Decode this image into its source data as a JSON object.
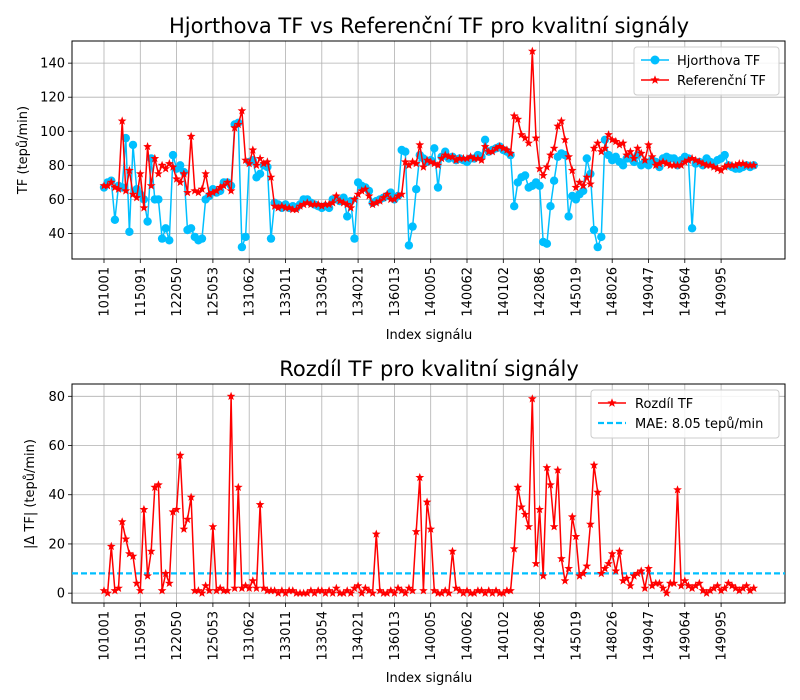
{
  "chart_data": [
    {
      "type": "line",
      "title": "Hjorthova TF vs Referenční TF pro kvalitní signály",
      "xlabel": "Index signálu",
      "ylabel": "TF (tepů/min)",
      "x_tick_labels": [
        "101001",
        "115091",
        "122050",
        "125053",
        "131062",
        "133011",
        "133054",
        "134021",
        "136013",
        "140005",
        "140062",
        "140102",
        "142086",
        "145019",
        "148026",
        "149047",
        "149064",
        "149095"
      ],
      "ylim": [
        25,
        153
      ],
      "yticks": [
        40,
        60,
        80,
        100,
        120,
        140
      ],
      "grid": true,
      "legend_position": "top-right",
      "n_points": 180,
      "series": [
        {
          "name": "Hjorthova TF",
          "color": "#00bfff",
          "marker": "circle",
          "values": [
            67,
            70,
            71,
            48,
            68,
            67,
            96,
            41,
            92,
            66,
            63,
            60,
            47,
            84,
            60,
            60,
            37,
            43,
            36,
            86,
            78,
            80,
            76,
            42,
            43,
            38,
            36,
            37,
            60,
            62,
            66,
            64,
            65,
            70,
            70,
            68,
            104,
            105,
            32,
            38,
            82,
            83,
            73,
            75,
            80,
            79,
            37,
            58,
            57,
            55,
            57,
            55,
            56,
            55,
            57,
            60,
            60,
            58,
            57,
            56,
            55,
            56,
            55,
            60,
            60,
            59,
            61,
            50,
            59,
            37,
            70,
            68,
            67,
            65,
            58,
            59,
            60,
            61,
            62,
            64,
            60,
            62,
            89,
            88,
            33,
            44,
            66,
            86,
            84,
            82,
            83,
            90,
            67,
            85,
            88,
            84,
            85,
            83,
            84,
            83,
            82,
            84,
            84,
            86,
            85,
            95,
            88,
            89,
            90,
            91,
            89,
            88,
            86,
            56,
            70,
            73,
            74,
            67,
            68,
            70,
            68,
            35,
            34,
            56,
            71,
            85,
            87,
            86,
            50,
            62,
            60,
            63,
            65,
            84,
            75,
            42,
            32,
            38,
            95,
            86,
            83,
            85,
            82,
            80,
            84,
            84,
            82,
            86,
            80,
            82,
            80,
            83,
            82,
            79,
            84,
            85,
            84,
            84,
            80,
            83,
            85,
            84,
            43,
            81,
            82,
            80,
            84,
            82,
            80,
            83,
            84,
            86,
            80,
            79,
            78,
            78,
            79,
            80,
            79,
            80
          ]
        },
        {
          "name": "Referenční TF",
          "color": "#ff0000",
          "marker": "star",
          "values": [
            68,
            68,
            70,
            67,
            66,
            106,
            65,
            77,
            63,
            61,
            75,
            55,
            91,
            68,
            84,
            75,
            80,
            78,
            81,
            79,
            72,
            70,
            75,
            64,
            97,
            65,
            64,
            66,
            75,
            63,
            64,
            65,
            67,
            68,
            70,
            65,
            102,
            104,
            112,
            83,
            81,
            89,
            80,
            84,
            81,
            82,
            73,
            56,
            55,
            56,
            55,
            55,
            54,
            54,
            56,
            57,
            58,
            57,
            57,
            57,
            56,
            57,
            57,
            58,
            62,
            59,
            58,
            57,
            55,
            60,
            63,
            65,
            66,
            62,
            57,
            58,
            59,
            61,
            63,
            60,
            60,
            62,
            63,
            82,
            80,
            82,
            81,
            92,
            79,
            83,
            82,
            81,
            80,
            84,
            86,
            85,
            85,
            83,
            84,
            84,
            84,
            85,
            84,
            84,
            83,
            91,
            88,
            88,
            90,
            91,
            90,
            89,
            87,
            109,
            107,
            98,
            96,
            93,
            147,
            96,
            78,
            74,
            79,
            86,
            90,
            103,
            106,
            95,
            85,
            77,
            67,
            70,
            68,
            73,
            69,
            90,
            93,
            88,
            90,
            98,
            95,
            94,
            92,
            93,
            86,
            88,
            84,
            90,
            87,
            83,
            92,
            85,
            80,
            81,
            82,
            81,
            80,
            80,
            80,
            80,
            82,
            83,
            84,
            83,
            82,
            81,
            80,
            80,
            79,
            78,
            77,
            79,
            80,
            80,
            80,
            81,
            81,
            80,
            80,
            80
          ]
        }
      ]
    },
    {
      "type": "line",
      "title": "Rozdíl TF pro kvalitní signály",
      "xlabel": "Index signálu",
      "ylabel": "|Δ TF| (tepů/min)",
      "x_tick_labels": [
        "101001",
        "115091",
        "122050",
        "125053",
        "131062",
        "133011",
        "133054",
        "134021",
        "136013",
        "140005",
        "140062",
        "140102",
        "142086",
        "145019",
        "148026",
        "149047",
        "149064",
        "149095"
      ],
      "ylim": [
        -4,
        85
      ],
      "yticks": [
        0,
        20,
        40,
        60,
        80
      ],
      "grid": true,
      "legend_position": "top-right",
      "n_points": 180,
      "series": [
        {
          "name": "Rozdíl TF",
          "color": "#ff0000",
          "marker": "star",
          "values": [
            1,
            0,
            19,
            1,
            2,
            29,
            22,
            16,
            15,
            4,
            1,
            34,
            7,
            17,
            43,
            44,
            1,
            8,
            4,
            33,
            34,
            56,
            26,
            30,
            39,
            1,
            1,
            0,
            3,
            1,
            27,
            1,
            2,
            1,
            1,
            80,
            2,
            43,
            2,
            3,
            2,
            5,
            2,
            36,
            2,
            1,
            1,
            1,
            0,
            1,
            0,
            1,
            1,
            0,
            0,
            0,
            0,
            1,
            0,
            1,
            1,
            0,
            1,
            0,
            2,
            0,
            0,
            1,
            0,
            2,
            3,
            0,
            2,
            1,
            0,
            24,
            1,
            0,
            0,
            1,
            0,
            2,
            1,
            0,
            2,
            1,
            25,
            47,
            1,
            37,
            26,
            1,
            0,
            0,
            1,
            0,
            17,
            2,
            1,
            0,
            1,
            0,
            0,
            1,
            1,
            0,
            1,
            0,
            1,
            0,
            0,
            1,
            1,
            18,
            43,
            35,
            32,
            27,
            79,
            12,
            34,
            7,
            51,
            44,
            27,
            50,
            14,
            5,
            10,
            31,
            23,
            7,
            8,
            11,
            28,
            52,
            41,
            8,
            10,
            12,
            16,
            9,
            17,
            5,
            6,
            3,
            7,
            8,
            9,
            2,
            10,
            3,
            4,
            4,
            2,
            0,
            4,
            4,
            42,
            3,
            5,
            3,
            2,
            3,
            4,
            1,
            0,
            1,
            2,
            3,
            1,
            2,
            4,
            3,
            2,
            1,
            2,
            3,
            1,
            2
          ]
        }
      ],
      "reference_line": {
        "label": "MAE: 8.05 tepů/min",
        "value": 8.05,
        "color": "#00bfff",
        "style": "dashed"
      }
    }
  ]
}
